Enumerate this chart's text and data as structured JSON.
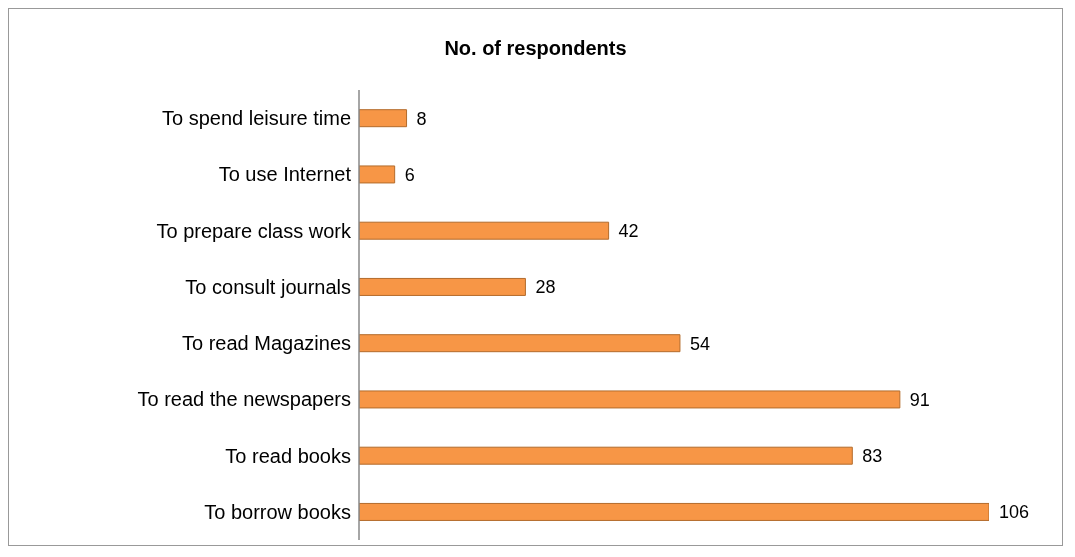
{
  "chart_data": {
    "type": "bar",
    "orientation": "horizontal",
    "title": "No. of respondents",
    "categories": [
      "To spend leisure time",
      "To use Internet",
      "To prepare class work",
      "To consult journals",
      "To read Magazines",
      "To read the newspapers",
      "To read books",
      "To borrow books"
    ],
    "values": [
      8,
      6,
      42,
      28,
      54,
      91,
      83,
      106
    ],
    "color": "#f79646",
    "data_labels": true,
    "grid": false
  }
}
